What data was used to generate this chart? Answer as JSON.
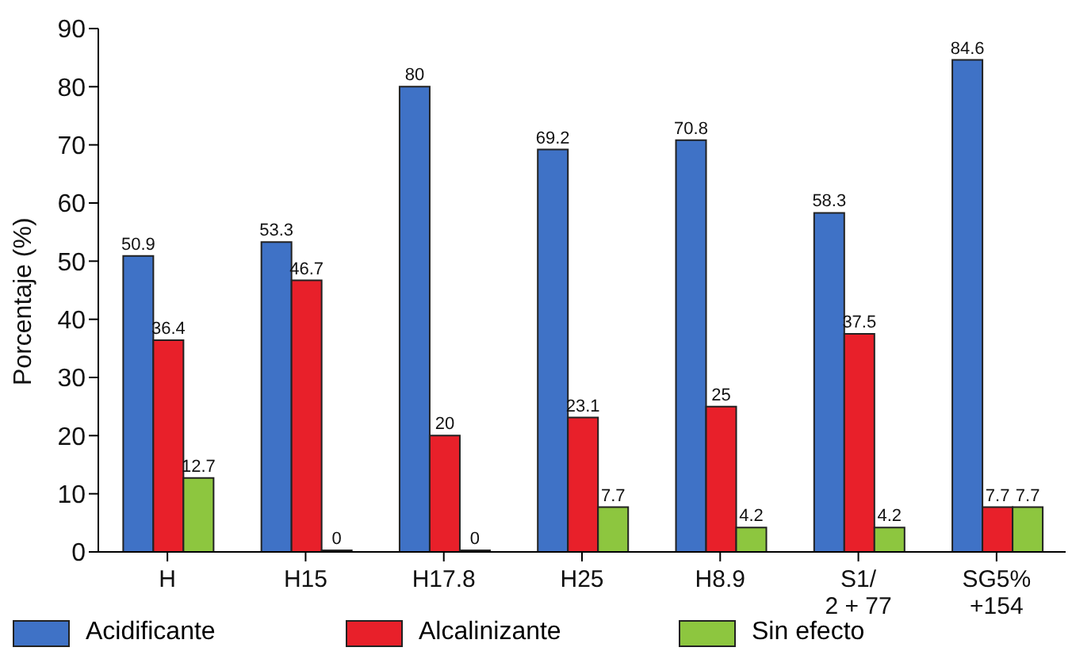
{
  "chart_data": {
    "type": "bar",
    "ylabel": "Porcentaje (%)",
    "categories": [
      "H",
      "H15",
      "H17.8",
      "H25",
      "H8.9",
      "S1/\n2 + 77",
      "SG5%\n+154"
    ],
    "series": [
      {
        "name": "Acidificante",
        "color": "#3f72c6",
        "values": [
          50.9,
          53.3,
          80,
          69.2,
          70.8,
          58.3,
          84.6
        ]
      },
      {
        "name": "Alcalinizante",
        "color": "#e8202a",
        "values": [
          36.4,
          46.7,
          20,
          23.1,
          25,
          37.5,
          7.7
        ]
      },
      {
        "name": "Sin efecto",
        "color": "#8dc63f",
        "values": [
          12.7,
          0,
          0,
          7.7,
          4.2,
          4.2,
          7.7
        ]
      }
    ],
    "ylim": [
      0,
      90
    ],
    "yticks": [
      0,
      10,
      20,
      30,
      40,
      50,
      60,
      70,
      80,
      90
    ],
    "legend": "bottom",
    "data_labels": true
  }
}
